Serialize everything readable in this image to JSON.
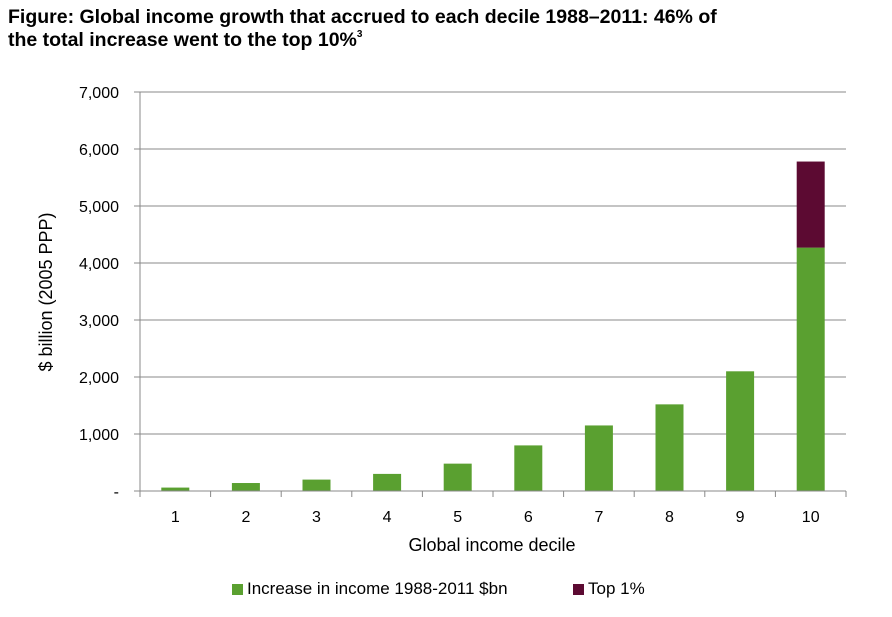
{
  "title": {
    "line1": "Figure: Global income growth that accrued to each decile 1988–2011: 46% of",
    "line2": "the total increase went to the top 10%",
    "footnote": "3"
  },
  "colors": {
    "green": "#5aa030",
    "maroon": "#5c0a32",
    "axis": "#888888",
    "grid": "#888888"
  },
  "chart_data": {
    "type": "bar",
    "stacked": true,
    "categories": [
      "1",
      "2",
      "3",
      "4",
      "5",
      "6",
      "7",
      "8",
      "9",
      "10"
    ],
    "series": [
      {
        "name": "Increase in income 1988-2011 $bn",
        "color": "#5aa030",
        "values": [
          60,
          140,
          200,
          300,
          480,
          800,
          1150,
          1520,
          2100,
          4270
        ]
      },
      {
        "name": "Top 1%",
        "color": "#5c0a32",
        "values": [
          0,
          0,
          0,
          0,
          0,
          0,
          0,
          0,
          0,
          1510
        ]
      }
    ],
    "title": "Figure: Global income growth that accrued to each decile 1988–2011: 46% of the total increase went to the top 10%",
    "xlabel": "Global income decile",
    "ylabel": "$ billion (2005 PPP)",
    "ylim": [
      0,
      7000
    ],
    "yticks": [
      0,
      1000,
      2000,
      3000,
      4000,
      5000,
      6000,
      7000
    ],
    "ytick_labels": [
      "-",
      "1,000",
      "2,000",
      "3,000",
      "4,000",
      "5,000",
      "6,000",
      "7,000"
    ],
    "grid": true,
    "legend": "bottom"
  }
}
